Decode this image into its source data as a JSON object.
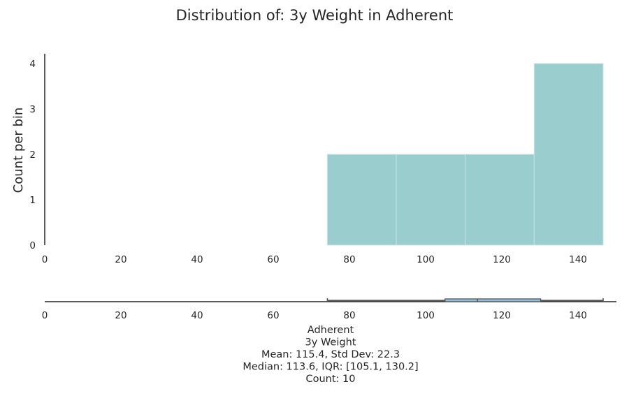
{
  "chart_data": {
    "type": "bar",
    "title": "Distribution of: 3y Weight in Adherent",
    "ylabel": "Count per bin",
    "xlim": [
      0,
      150
    ],
    "ylim": [
      0,
      4.2
    ],
    "x_ticks": [
      0,
      20,
      40,
      60,
      80,
      100,
      120,
      140
    ],
    "y_ticks": [
      0,
      1,
      2,
      3,
      4
    ],
    "bins": [
      {
        "x0": 74.2,
        "x1": 92.3,
        "count": 2
      },
      {
        "x0": 92.3,
        "x1": 110.4,
        "count": 2
      },
      {
        "x0": 110.4,
        "x1": 128.5,
        "count": 2
      },
      {
        "x0": 128.5,
        "x1": 146.6,
        "count": 4
      }
    ],
    "boxplot": {
      "min": 74.2,
      "q1": 105.1,
      "median": 113.6,
      "q3": 130.2,
      "max": 146.6
    },
    "stats_lines": [
      "Adherent",
      "3y Weight",
      "Mean: 115.4, Std Dev: 22.3",
      "Median: 113.6, IQR: [105.1, 130.2]",
      "Count: 10"
    ],
    "colors": {
      "bar": "#9ACDCE",
      "box": "#8fc1d9"
    }
  }
}
